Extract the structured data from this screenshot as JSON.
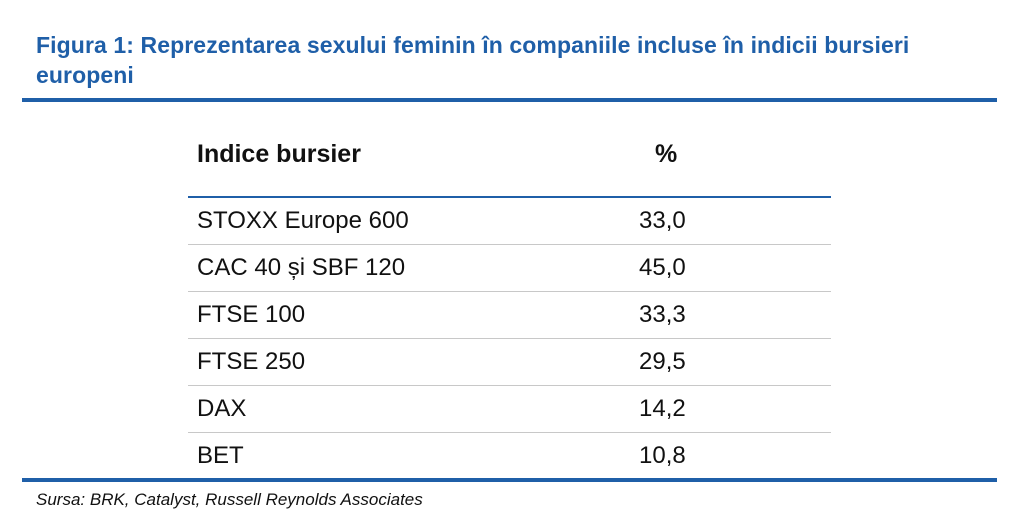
{
  "figure": {
    "title": "Figura 1: Reprezentarea sexului feminin în companiile incluse în indicii bursieri europeni",
    "source": "Sursa: BRK, Catalyst, Russell Reynolds Associates"
  },
  "colors": {
    "accent": "#1f5fa8",
    "row_divider": "#c8c8c8",
    "text": "#111111"
  },
  "chart_data": {
    "type": "table",
    "title": "Figura 1: Reprezentarea sexului feminin în companiile incluse în indicii bursieri europeni",
    "columns": [
      "Indice bursier",
      "%"
    ],
    "rows": [
      {
        "index": "STOXX Europe 600",
        "value": "33,0"
      },
      {
        "index": "CAC 40 și SBF 120",
        "value": "45,0"
      },
      {
        "index": "FTSE 100",
        "value": "33,3"
      },
      {
        "index": "FTSE 250",
        "value": "29,5"
      },
      {
        "index": "DAX",
        "value": "14,2"
      },
      {
        "index": "BET",
        "value": "10,8"
      }
    ]
  }
}
